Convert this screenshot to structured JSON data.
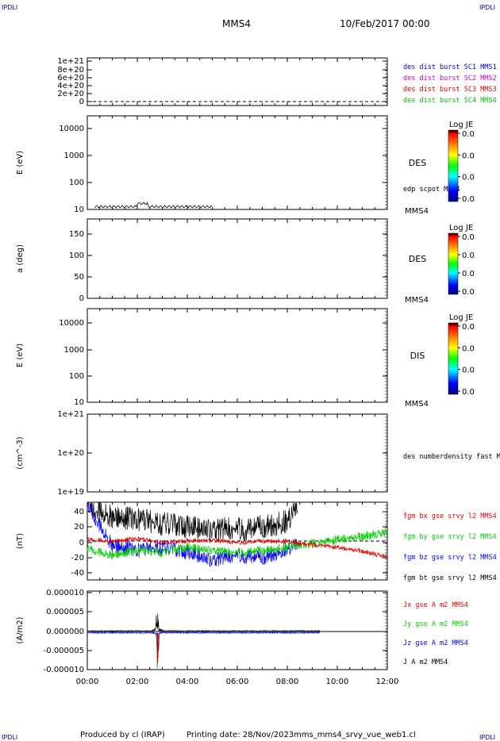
{
  "header": {
    "corner_tl": "IPDLI",
    "corner_tr": "IPDLI",
    "corner_bl": "IPDLI",
    "corner_br": "IPDLI",
    "spacecraft": "MMS4",
    "datetime": "10/Feb/2017 00:00"
  },
  "footer": {
    "produced": "Produced by cl (IRAP)",
    "printing": "Printing date: 28/Nov/2023",
    "file": "mms_mms4_srvy_vue_web1.cl"
  },
  "colors": {
    "mms1": "#0000cc",
    "mms2": "#cc00cc",
    "mms3": "#cc0000",
    "mms4": "#00bb00",
    "bx": "#dd0000",
    "by": "#00cc00",
    "bz": "#0000ee",
    "bt": "#000000"
  },
  "xaxis": {
    "ticks": [
      "00:00",
      "02:00",
      "04:00",
      "06:00",
      "08:00",
      "10:00",
      "12:00"
    ]
  },
  "chart_data": [
    {
      "type": "line",
      "panel": "dist",
      "ylim": [
        0,
        1e+21
      ],
      "ticks": [
        "1e+21",
        "8e+20",
        "6e+20",
        "4e+20",
        "2e+20",
        "0"
      ],
      "legend": [
        "des dist burst SC1 MMS1",
        "des dist burst SC2 MMS2",
        "des dist burst SC3 MMS3",
        "des dist burst SC4 MMS4"
      ]
    },
    {
      "type": "heatmap",
      "panel": "des-energy",
      "ylabel": "E (eV)",
      "ticks": [
        "10000",
        "1000",
        "100",
        "10"
      ],
      "label": "DES",
      "sub": "edp scpot MMS4",
      "corner": "MMS4",
      "colorbar": {
        "title": "Log JE",
        "ticks": [
          "0.0",
          "0.0",
          "0.0",
          "0.0"
        ]
      }
    },
    {
      "type": "heatmap",
      "panel": "des-pitch",
      "ylabel": "a (deg)",
      "ticks": [
        "150",
        "100",
        "50",
        "0"
      ],
      "label": "DES",
      "corner": "MMS4",
      "colorbar": {
        "title": "Log JE",
        "ticks": [
          "0.0",
          "0.0",
          "0.0",
          "0.0"
        ]
      }
    },
    {
      "type": "heatmap",
      "panel": "dis-energy",
      "ylabel": "E (eV)",
      "ticks": [
        "10000",
        "1000",
        "100",
        "10"
      ],
      "label": "DIS",
      "corner": "MMS4",
      "colorbar": {
        "title": "Log JE",
        "ticks": [
          "0.0",
          "0.0",
          "0.0",
          "0.0"
        ]
      }
    },
    {
      "type": "line",
      "panel": "density",
      "ylabel": "(cm^-3)",
      "ticks": [
        "1e+21",
        "1e+20",
        "1e+19"
      ],
      "legend": [
        "des numberdensity fast M"
      ]
    },
    {
      "type": "line",
      "panel": "fgm",
      "ylabel": "(nT)",
      "ylim": [
        -50,
        50
      ],
      "ticks": [
        "40",
        "20",
        "0",
        "-20",
        "-40"
      ],
      "legend": [
        "fgm bx gse srvy l2 MMS4",
        "fgm by gse srvy l2 MMS4",
        "fgm bz gse srvy l2 MMS4",
        "fgm bt gse srvy l2 MMS4"
      ],
      "series_hours": [
        0,
        1,
        2,
        3,
        4,
        5,
        6,
        7,
        8,
        8.4,
        9,
        10,
        11,
        12
      ],
      "bt": [
        45,
        32,
        28,
        22,
        18,
        15,
        15,
        18,
        25,
        45,
        null,
        null,
        null,
        null
      ],
      "bx": [
        2,
        0,
        3,
        -2,
        0,
        1,
        -2,
        0,
        0,
        -3,
        -4,
        -8,
        -13,
        -20
      ],
      "by": [
        -10,
        -18,
        -12,
        -15,
        -8,
        -12,
        -15,
        -12,
        -8,
        -5,
        -3,
        2,
        6,
        12
      ],
      "bz": [
        45,
        -5,
        -12,
        -8,
        -15,
        -25,
        -18,
        -22,
        -10,
        -5,
        null,
        null,
        null,
        null
      ]
    },
    {
      "type": "line",
      "panel": "current",
      "ylabel": "(A/m2)",
      "ylim": [
        -1e-05,
        1e-05
      ],
      "ticks": [
        "0.000010",
        "0.000005",
        "0.000000",
        "-0.000005",
        "-0.000010"
      ],
      "legend": [
        "Jx gse A m2 MMS4",
        "Jy gse A m2 MMS4",
        "Jz gse A m2 MMS4",
        "J A m2 MMS4"
      ]
    }
  ]
}
